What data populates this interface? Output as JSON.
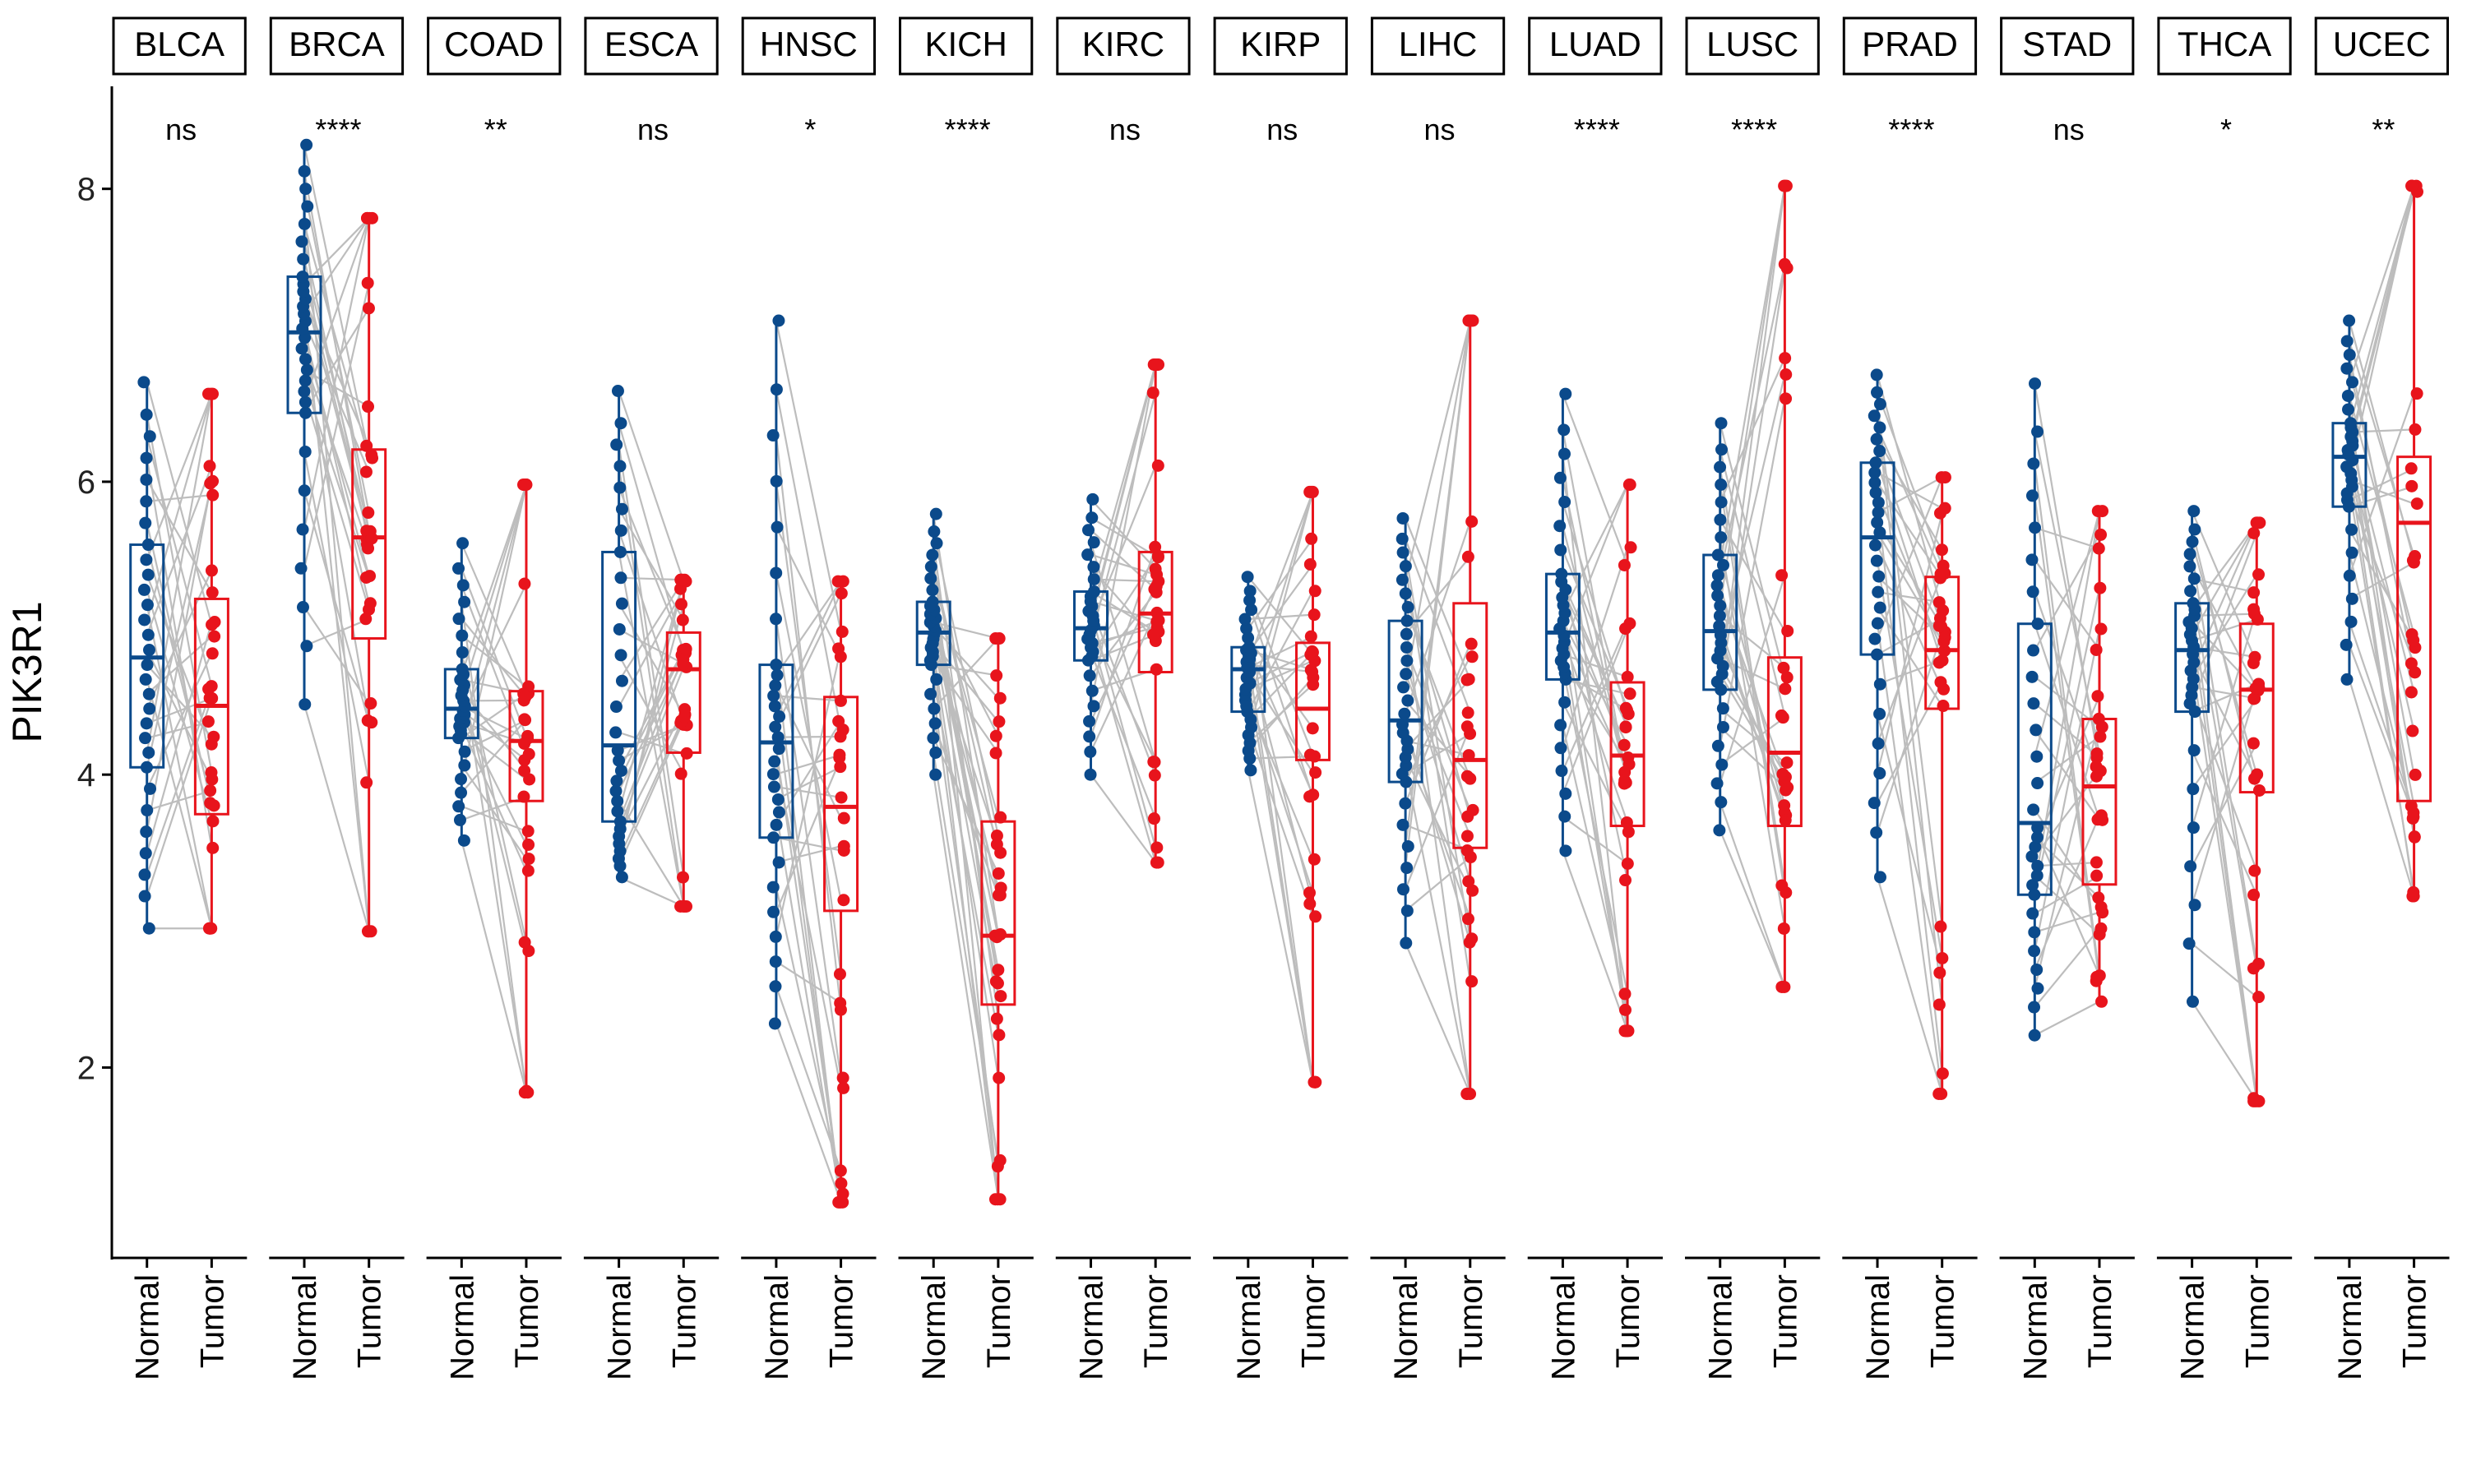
{
  "chart_data": {
    "type": "box",
    "ylabel": "PIK3R1",
    "yticks": [
      2,
      4,
      6,
      8
    ],
    "ylim": [
      0.7,
      8.7
    ],
    "groups": [
      "Normal",
      "Tumor"
    ],
    "colors": {
      "Normal": "#0b4a8b",
      "Tumor": "#e8141c",
      "pair_line": "#bdbdbd"
    },
    "facets": [
      {
        "name": "BLCA",
        "sig": "ns",
        "normal": {
          "min": 2.95,
          "q1": 4.05,
          "median": 4.8,
          "q3": 5.57,
          "max": 6.68
        },
        "tumor": {
          "min": 2.95,
          "q1": 3.73,
          "median": 4.47,
          "q3": 5.2,
          "max": 6.6
        }
      },
      {
        "name": "BRCA",
        "sig": "****",
        "normal": {
          "min": 4.48,
          "q1": 6.47,
          "median": 7.02,
          "q3": 7.4,
          "max": 8.3
        },
        "tumor": {
          "min": 2.93,
          "q1": 4.93,
          "median": 5.62,
          "q3": 6.22,
          "max": 7.8
        }
      },
      {
        "name": "COAD",
        "sig": "**",
        "normal": {
          "min": 3.55,
          "q1": 4.25,
          "median": 4.45,
          "q3": 4.72,
          "max": 5.58
        },
        "tumor": {
          "min": 1.83,
          "q1": 3.82,
          "median": 4.23,
          "q3": 4.57,
          "max": 5.98
        }
      },
      {
        "name": "ESCA",
        "sig": "ns",
        "normal": {
          "min": 3.3,
          "q1": 3.68,
          "median": 4.2,
          "q3": 5.52,
          "max": 6.62
        },
        "tumor": {
          "min": 3.1,
          "q1": 4.15,
          "median": 4.72,
          "q3": 4.97,
          "max": 5.33
        }
      },
      {
        "name": "HNSC",
        "sig": "*",
        "normal": {
          "min": 2.3,
          "q1": 3.57,
          "median": 4.22,
          "q3": 4.75,
          "max": 7.1
        },
        "tumor": {
          "min": 1.08,
          "q1": 3.07,
          "median": 3.78,
          "q3": 4.53,
          "max": 5.32
        }
      },
      {
        "name": "KICH",
        "sig": "****",
        "normal": {
          "min": 4.0,
          "q1": 4.75,
          "median": 4.97,
          "q3": 5.18,
          "max": 5.78
        },
        "tumor": {
          "min": 1.1,
          "q1": 2.43,
          "median": 2.9,
          "q3": 3.68,
          "max": 4.93
        }
      },
      {
        "name": "KIRC",
        "sig": "ns",
        "normal": {
          "min": 4.0,
          "q1": 4.78,
          "median": 5.0,
          "q3": 5.25,
          "max": 5.88
        },
        "tumor": {
          "min": 3.4,
          "q1": 4.7,
          "median": 5.1,
          "q3": 5.52,
          "max": 6.8
        }
      },
      {
        "name": "KIRP",
        "sig": "ns",
        "normal": {
          "min": 4.03,
          "q1": 4.43,
          "median": 4.72,
          "q3": 4.87,
          "max": 5.35
        },
        "tumor": {
          "min": 1.9,
          "q1": 4.1,
          "median": 4.45,
          "q3": 4.9,
          "max": 5.93
        }
      },
      {
        "name": "LIHC",
        "sig": "ns",
        "normal": {
          "min": 2.85,
          "q1": 3.95,
          "median": 4.37,
          "q3": 5.05,
          "max": 5.75
        },
        "tumor": {
          "min": 1.82,
          "q1": 3.5,
          "median": 4.1,
          "q3": 5.17,
          "max": 7.1
        }
      },
      {
        "name": "LUAD",
        "sig": "****",
        "normal": {
          "min": 3.48,
          "q1": 4.65,
          "median": 4.97,
          "q3": 5.37,
          "max": 6.6
        },
        "tumor": {
          "min": 2.25,
          "q1": 3.65,
          "median": 4.13,
          "q3": 4.63,
          "max": 5.98
        }
      },
      {
        "name": "LUSC",
        "sig": "****",
        "normal": {
          "min": 3.62,
          "q1": 4.58,
          "median": 4.98,
          "q3": 5.5,
          "max": 6.4
        },
        "tumor": {
          "min": 2.55,
          "q1": 3.65,
          "median": 4.15,
          "q3": 4.8,
          "max": 8.02
        }
      },
      {
        "name": "PRAD",
        "sig": "****",
        "normal": {
          "min": 3.3,
          "q1": 4.82,
          "median": 5.62,
          "q3": 6.13,
          "max": 6.73
        },
        "tumor": {
          "min": 1.82,
          "q1": 4.45,
          "median": 4.85,
          "q3": 5.35,
          "max": 6.03
        }
      },
      {
        "name": "STAD",
        "sig": "ns",
        "normal": {
          "min": 2.22,
          "q1": 3.18,
          "median": 3.67,
          "q3": 5.03,
          "max": 6.67
        },
        "tumor": {
          "min": 2.45,
          "q1": 3.25,
          "median": 3.92,
          "q3": 4.38,
          "max": 5.8
        }
      },
      {
        "name": "THCA",
        "sig": "*",
        "normal": {
          "min": 2.45,
          "q1": 4.43,
          "median": 4.85,
          "q3": 5.17,
          "max": 5.8
        },
        "tumor": {
          "min": 1.77,
          "q1": 3.88,
          "median": 4.58,
          "q3": 5.03,
          "max": 5.72
        }
      },
      {
        "name": "UCEC",
        "sig": "**",
        "normal": {
          "min": 4.65,
          "q1": 5.83,
          "median": 6.17,
          "q3": 6.4,
          "max": 7.1
        },
        "tumor": {
          "min": 3.17,
          "q1": 3.82,
          "median": 5.72,
          "q3": 6.17,
          "max": 8.02
        }
      }
    ]
  }
}
